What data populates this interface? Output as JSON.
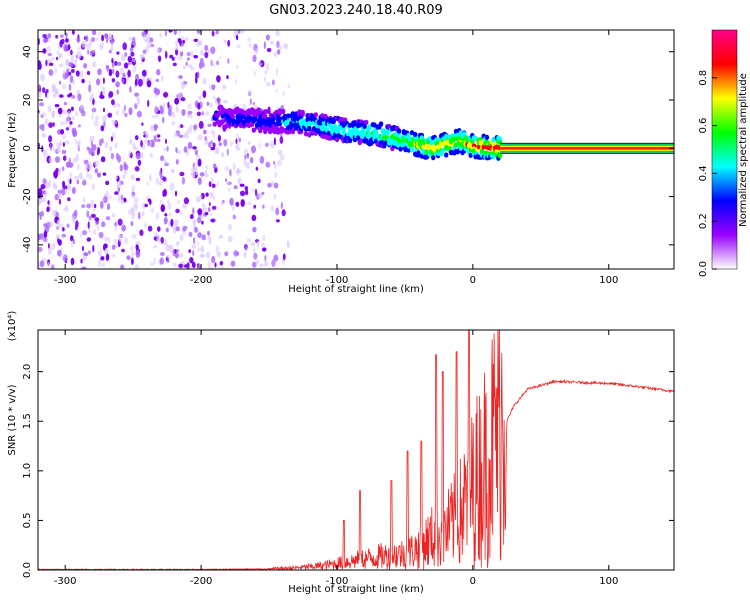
{
  "figure_title": "GN03.2023.240.18.40.R09",
  "chart_data": [
    {
      "type": "heatmap",
      "xlabel": "Height of straight line (km)",
      "ylabel": "Frequency (Hz)",
      "xlim": [
        -320,
        148
      ],
      "ylim": [
        -50,
        49
      ],
      "x_ticks": [
        -300,
        -200,
        -100,
        0,
        100
      ],
      "y_ticks": [
        -40,
        -20,
        0,
        20,
        40
      ],
      "x_tick_labels": [
        "-300",
        "-200",
        "-100",
        "0",
        "100"
      ],
      "y_tick_labels": [
        "-40",
        "-20",
        "0",
        "20",
        "40"
      ],
      "colorbar": {
        "label": "Normalized spectral amplitude",
        "range": [
          0,
          1
        ],
        "ticks": [
          0.0,
          0.2,
          0.4,
          0.6,
          0.8
        ],
        "tick_labels": [
          "0.0",
          "0.2",
          "0.4",
          "0.6",
          "0.8"
        ],
        "colors": [
          "#ffffff",
          "#9900ff",
          "#0000ff",
          "#00ffff",
          "#00ff00",
          "#ffff00",
          "#ff0000",
          "#ff0088"
        ]
      },
      "ridge": {
        "x": [
          -185,
          -170,
          -150,
          -130,
          -110,
          -90,
          -70,
          -50,
          -30,
          -10,
          0,
          10,
          20,
          148
        ],
        "freq": [
          13,
          12,
          11,
          11,
          9,
          7,
          6,
          3,
          0,
          3,
          1,
          0.5,
          0,
          0
        ],
        "amplitude": [
          0.25,
          0.28,
          0.3,
          0.4,
          0.45,
          0.5,
          0.55,
          0.6,
          0.75,
          0.7,
          0.8,
          0.85,
          0.9,
          0.95
        ]
      },
      "noise_region_x": [
        -320,
        -135
      ],
      "grid": false
    },
    {
      "type": "line",
      "xlabel": "Height of straight line (km)",
      "ylabel": "SNR (10 * v/v)",
      "y_multiplier_label": "(x10⁴)",
      "xlim": [
        -320,
        148
      ],
      "ylim": [
        0,
        2.42
      ],
      "x_ticks": [
        -300,
        -200,
        -100,
        0,
        100
      ],
      "y_ticks": [
        0.0,
        0.5,
        1.0,
        1.5,
        2.0
      ],
      "x_tick_labels": [
        "-300",
        "-200",
        "-100",
        "0",
        "100"
      ],
      "y_tick_labels": [
        "0.0",
        "0.5",
        "1.0",
        "1.5",
        "2.0"
      ],
      "color": "#ee2222",
      "trend": {
        "x": [
          -320,
          -200,
          -150,
          -130,
          -110,
          -90,
          -70,
          -50,
          -40,
          -30,
          -20,
          -10,
          0,
          10,
          20,
          30,
          40,
          60,
          100,
          120,
          148
        ],
        "y": [
          0.005,
          0.005,
          0.01,
          0.02,
          0.04,
          0.08,
          0.12,
          0.15,
          0.2,
          0.3,
          0.35,
          0.5,
          0.75,
          1.0,
          1.35,
          1.65,
          1.82,
          1.9,
          1.88,
          1.85,
          1.8
        ]
      },
      "spikes": [
        {
          "x": -27,
          "y": 2.17
        },
        {
          "x": -22,
          "y": 2.0
        },
        {
          "x": -12,
          "y": 2.2
        },
        {
          "x": -3,
          "y": 2.42
        },
        {
          "x": -38,
          "y": 1.3
        },
        {
          "x": -48,
          "y": 1.2
        },
        {
          "x": -60,
          "y": 0.9
        },
        {
          "x": -83,
          "y": 0.8
        },
        {
          "x": -95,
          "y": 0.5
        }
      ],
      "grid": false
    }
  ]
}
